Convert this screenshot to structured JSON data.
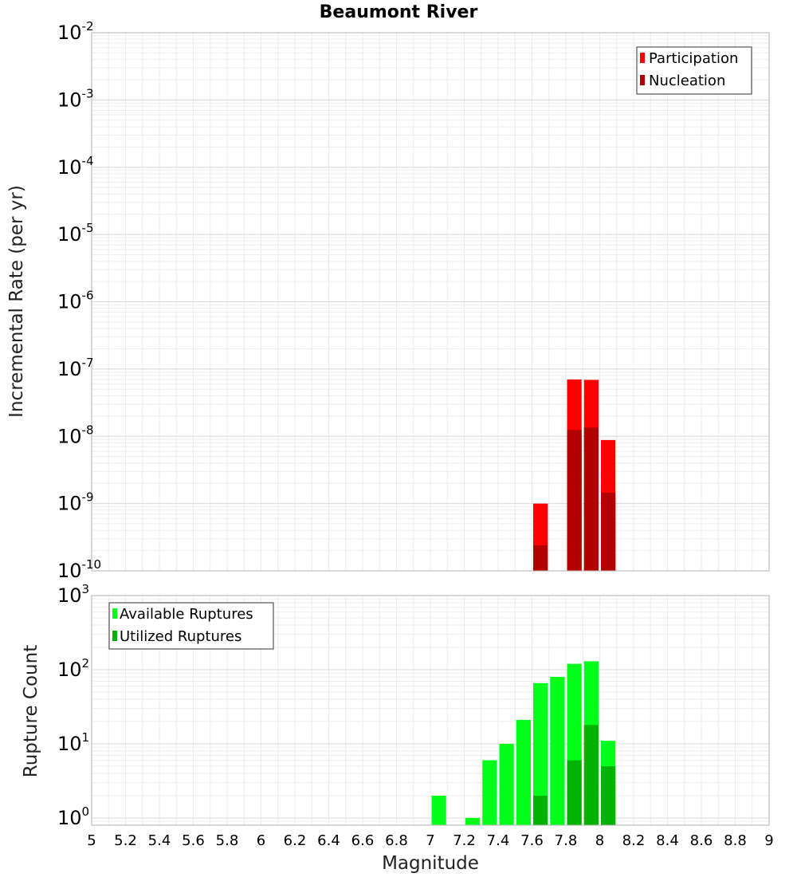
{
  "chart_data": [
    {
      "id": "top",
      "type": "bar",
      "scale": "log",
      "title": "Beaumont River",
      "ylabel": "Incremental Rate (per yr)",
      "ylim": [
        1e-10,
        0.01
      ],
      "ytick_exponents": [
        "-10",
        "-9",
        "-8",
        "-7",
        "-6",
        "-5",
        "-4",
        "-3",
        "-2"
      ],
      "grid": true,
      "legend_position": "top-right",
      "bin_width": 0.1,
      "series": [
        {
          "name": "Participation",
          "color": "#ff0000",
          "points": [
            {
              "x": 7.65,
              "y": 1e-09
            },
            {
              "x": 7.85,
              "y": 7e-08
            },
            {
              "x": 7.95,
              "y": 6.9e-08
            },
            {
              "x": 8.05,
              "y": 8.8e-09
            }
          ]
        },
        {
          "name": "Nucleation",
          "color": "#b30000",
          "points": [
            {
              "x": 7.65,
              "y": 2.4e-10
            },
            {
              "x": 7.85,
              "y": 1.25e-08
            },
            {
              "x": 7.95,
              "y": 1.35e-08
            },
            {
              "x": 8.05,
              "y": 1.45e-09
            }
          ]
        }
      ]
    },
    {
      "id": "bottom",
      "type": "bar",
      "scale": "log",
      "xlabel": "Magnitude",
      "ylabel": "Rupture Count",
      "ylim": [
        0.8,
        1000
      ],
      "xlim": [
        5,
        9
      ],
      "ytick_exponents": [
        "0",
        "1",
        "2",
        "3"
      ],
      "xticks": [
        "5",
        "5.2",
        "5.4",
        "5.6",
        "5.8",
        "6",
        "6.2",
        "6.4",
        "6.6",
        "6.8",
        "7",
        "7.2",
        "7.4",
        "7.6",
        "7.8",
        "8",
        "8.2",
        "8.4",
        "8.6",
        "8.8",
        "9"
      ],
      "grid": true,
      "legend_position": "top-left",
      "bin_width": 0.1,
      "series": [
        {
          "name": "Available Ruptures",
          "color": "#00ff1a",
          "points": [
            {
              "x": 7.05,
              "y": 2
            },
            {
              "x": 7.25,
              "y": 1
            },
            {
              "x": 7.35,
              "y": 6
            },
            {
              "x": 7.45,
              "y": 10
            },
            {
              "x": 7.55,
              "y": 21
            },
            {
              "x": 7.65,
              "y": 66
            },
            {
              "x": 7.75,
              "y": 80
            },
            {
              "x": 7.85,
              "y": 120
            },
            {
              "x": 7.95,
              "y": 130
            },
            {
              "x": 8.05,
              "y": 11
            }
          ]
        },
        {
          "name": "Utilized Ruptures",
          "color": "#00b300",
          "points": [
            {
              "x": 7.65,
              "y": 2
            },
            {
              "x": 7.85,
              "y": 6
            },
            {
              "x": 7.95,
              "y": 18
            },
            {
              "x": 8.05,
              "y": 5
            }
          ]
        }
      ]
    }
  ]
}
